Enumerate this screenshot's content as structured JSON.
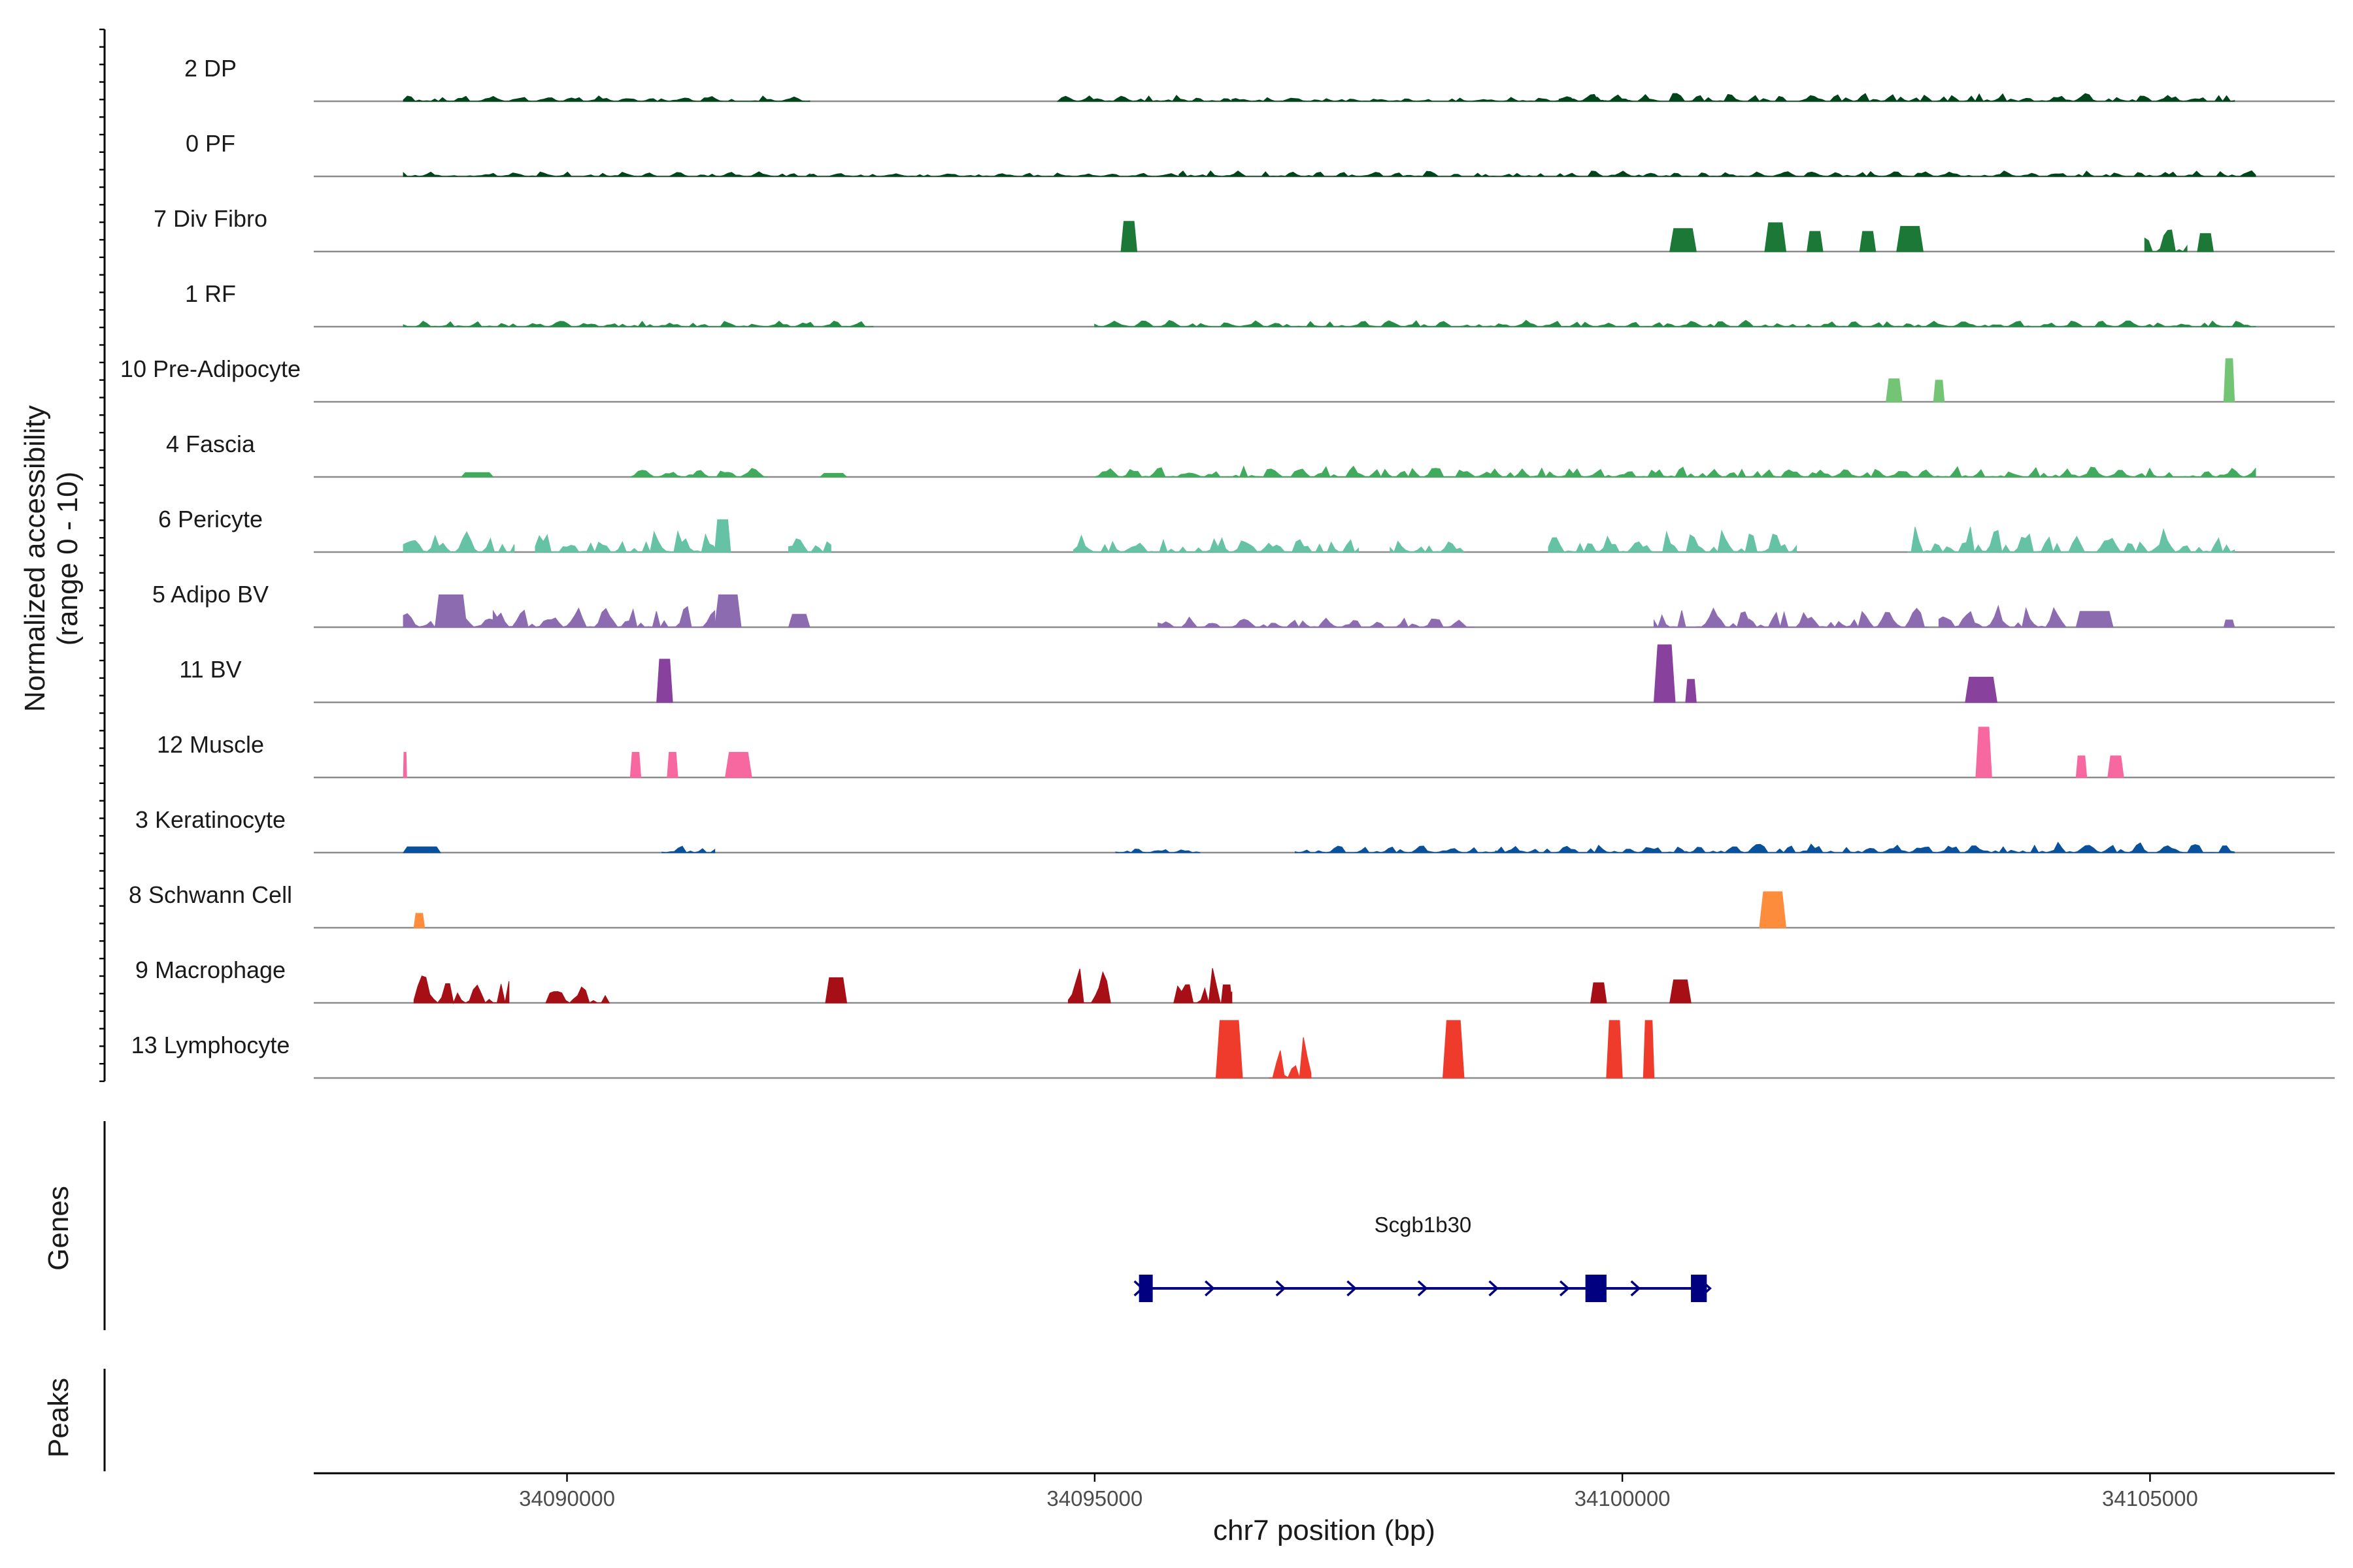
{
  "chart_data": {
    "type": "genome-coverage",
    "title": "",
    "chromosome": "chr7",
    "xlabel": "chr7 position (bp)",
    "ylabel_line1": "Normalized accessibility",
    "ylabel_line2": "(range 0 - 10)",
    "xlim": [
      34087600,
      34106750
    ],
    "xticks": [
      {
        "value": 34090000,
        "label": "34090000"
      },
      {
        "value": 34095000,
        "label": "34095000"
      },
      {
        "value": 34100000,
        "label": "34100000"
      },
      {
        "value": 34105000,
        "label": "34105000"
      }
    ],
    "ylim": [
      0,
      10
    ],
    "panel_titles": {
      "genes": "Genes",
      "peaks": "Peaks"
    },
    "tracks": [
      {
        "name": "2 DP",
        "color": "#00441b",
        "regions": [
          [
            34088450,
            34092300,
            0.8
          ],
          [
            34094650,
            34096300,
            0.9
          ],
          [
            34096300,
            34100100,
            0.6
          ],
          [
            34099400,
            34105800,
            1.2
          ]
        ]
      },
      {
        "name": "0 PF",
        "color": "#00441b",
        "regions": [
          [
            34088450,
            34092300,
            0.7
          ],
          [
            34092300,
            34095800,
            0.5
          ],
          [
            34095800,
            34106000,
            0.8
          ]
        ]
      },
      {
        "name": "7 Div Fibro",
        "color": "#1b7837",
        "regions": [
          [
            34095250,
            34095400,
            4.2
          ],
          [
            34100450,
            34100700,
            3.2
          ],
          [
            34101350,
            34101550,
            4.0
          ],
          [
            34101750,
            34101900,
            2.8
          ],
          [
            34102250,
            34102400,
            2.8
          ],
          [
            34102600,
            34102850,
            3.5
          ],
          [
            34104950,
            34105350,
            4.2
          ],
          [
            34105450,
            34105600,
            2.5
          ]
        ]
      },
      {
        "name": "1 RF",
        "color": "#238b45",
        "regions": [
          [
            34088450,
            34092900,
            0.8
          ],
          [
            34095000,
            34106000,
            0.9
          ]
        ]
      },
      {
        "name": "10 Pre-Adipocyte",
        "color": "#74c476",
        "regions": [
          [
            34102500,
            34102650,
            3.2
          ],
          [
            34102950,
            34103050,
            3.0
          ],
          [
            34105700,
            34105800,
            6.0
          ]
        ]
      },
      {
        "name": "4 Fascia",
        "color": "#41ab5d",
        "regions": [
          [
            34089000,
            34089300,
            0.6
          ],
          [
            34090600,
            34091900,
            1.2
          ],
          [
            34092400,
            34092650,
            0.5
          ],
          [
            34095000,
            34106000,
            1.5
          ]
        ]
      },
      {
        "name": "6 Pericyte",
        "color": "#66c2a4",
        "regions": [
          [
            34088450,
            34089500,
            3.0
          ],
          [
            34089700,
            34091500,
            3.5
          ],
          [
            34091400,
            34091550,
            4.5
          ],
          [
            34092100,
            34092500,
            2.5
          ],
          [
            34094800,
            34097500,
            2.5
          ],
          [
            34097800,
            34098500,
            1.8
          ],
          [
            34099300,
            34101650,
            3.0
          ],
          [
            34102700,
            34105800,
            3.5
          ]
        ]
      },
      {
        "name": "5 Adipo BV",
        "color": "#8c6bb1",
        "regions": [
          [
            34088450,
            34089300,
            2.5
          ],
          [
            34088750,
            34089050,
            4.5
          ],
          [
            34089300,
            34091400,
            3.0
          ],
          [
            34091400,
            34091650,
            4.5
          ],
          [
            34092100,
            34092300,
            1.8
          ],
          [
            34095600,
            34098600,
            1.5
          ],
          [
            34100300,
            34101200,
            2.8
          ],
          [
            34101200,
            34102900,
            2.8
          ],
          [
            34103000,
            34104200,
            3.0
          ],
          [
            34104300,
            34104650,
            2.2
          ],
          [
            34105700,
            34105800,
            1.0
          ]
        ]
      },
      {
        "name": "11 BV",
        "color": "#88419d",
        "regions": [
          [
            34090850,
            34091000,
            6.0
          ],
          [
            34100300,
            34100500,
            8.0
          ],
          [
            34100600,
            34100700,
            3.2
          ],
          [
            34103250,
            34103550,
            3.5
          ]
        ]
      },
      {
        "name": "12 Muscle",
        "color": "#f768a1",
        "regions": [
          [
            34088450,
            34088480,
            3.5
          ],
          [
            34090600,
            34090700,
            3.5
          ],
          [
            34090950,
            34091050,
            3.5
          ],
          [
            34091500,
            34091750,
            3.5
          ],
          [
            34103350,
            34103500,
            7.0
          ],
          [
            34104300,
            34104400,
            3.0
          ],
          [
            34104600,
            34104750,
            3.0
          ]
        ]
      },
      {
        "name": "3 Keratinocyte",
        "color": "#08519c",
        "regions": [
          [
            34088450,
            34088800,
            0.8
          ],
          [
            34090900,
            34091400,
            1.0
          ],
          [
            34095200,
            34096000,
            0.8
          ],
          [
            34096900,
            34099000,
            1.0
          ],
          [
            34098800,
            34100600,
            1.2
          ],
          [
            34100600,
            34105800,
            1.5
          ]
        ]
      },
      {
        "name": "8 Schwann Cell",
        "color": "#fd8d3c",
        "regions": [
          [
            34088550,
            34088650,
            2.0
          ],
          [
            34101300,
            34101550,
            5.0
          ]
        ]
      },
      {
        "name": "9 Macrophage",
        "color": "#a50f15",
        "regions": [
          [
            34088550,
            34089450,
            4.0
          ],
          [
            34089800,
            34090400,
            3.0
          ],
          [
            34092450,
            34092650,
            3.5
          ],
          [
            34094750,
            34095150,
            5.5
          ],
          [
            34095750,
            34096300,
            5.5
          ],
          [
            34096200,
            34096300,
            2.5
          ],
          [
            34099700,
            34099850,
            2.8
          ],
          [
            34100450,
            34100650,
            3.2
          ]
        ]
      },
      {
        "name": "13 Lymphocyte",
        "color": "#ef3b2c",
        "regions": [
          [
            34096150,
            34096400,
            8.0
          ],
          [
            34096650,
            34097050,
            8.0
          ],
          [
            34098300,
            34098500,
            8.0
          ],
          [
            34099850,
            34100000,
            8.0
          ],
          [
            34100200,
            34100300,
            8.0
          ]
        ]
      }
    ],
    "gene": {
      "name": "Scgb1b30",
      "strand": "+",
      "start": 34095420,
      "end": 34100800,
      "exons": [
        [
          34095420,
          34095550
        ],
        [
          34099650,
          34099850
        ],
        [
          34100650,
          34100800
        ]
      ]
    },
    "peaks": []
  }
}
